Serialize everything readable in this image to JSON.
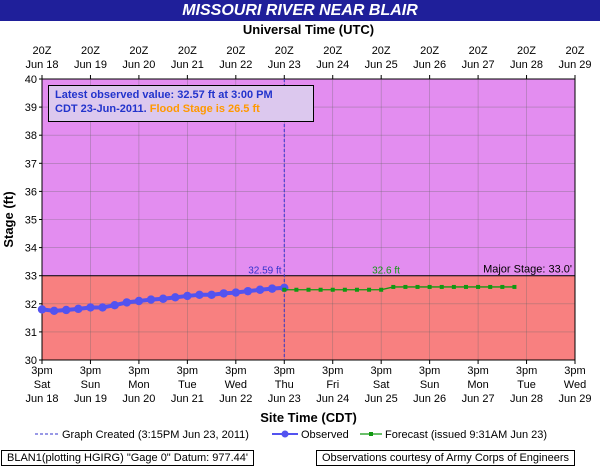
{
  "title": "MISSOURI RIVER NEAR BLAIR",
  "chart_data": {
    "type": "line",
    "top_axis_title": "Universal Time (UTC)",
    "xlabel": "Site Time (CDT)",
    "ylabel": "Stage (ft)",
    "ylim": [
      30,
      40
    ],
    "y_ticks": [
      "30",
      "31",
      "32",
      "33",
      "34",
      "35",
      "36",
      "37",
      "38",
      "39",
      "40"
    ],
    "top_ticks": [
      [
        "20Z",
        "Jun 18"
      ],
      [
        "20Z",
        "Jun 19"
      ],
      [
        "20Z",
        "Jun 20"
      ],
      [
        "20Z",
        "Jun 21"
      ],
      [
        "20Z",
        "Jun 22"
      ],
      [
        "20Z",
        "Jun 23"
      ],
      [
        "20Z",
        "Jun 24"
      ],
      [
        "20Z",
        "Jun 25"
      ],
      [
        "20Z",
        "Jun 26"
      ],
      [
        "20Z",
        "Jun 27"
      ],
      [
        "20Z",
        "Jun 28"
      ],
      [
        "20Z",
        "Jun 29"
      ]
    ],
    "bottom_ticks": [
      [
        "3pm",
        "Sat",
        "Jun 18"
      ],
      [
        "3pm",
        "Sun",
        "Jun 19"
      ],
      [
        "3pm",
        "Mon",
        "Jun 20"
      ],
      [
        "3pm",
        "Tue",
        "Jun 21"
      ],
      [
        "3pm",
        "Wed",
        "Jun 22"
      ],
      [
        "3pm",
        "Thu",
        "Jun 23"
      ],
      [
        "3pm",
        "Fri",
        "Jun 24"
      ],
      [
        "3pm",
        "Sat",
        "Jun 25"
      ],
      [
        "3pm",
        "Sun",
        "Jun 26"
      ],
      [
        "3pm",
        "Mon",
        "Jun 27"
      ],
      [
        "3pm",
        "Tue",
        "Jun 28"
      ],
      [
        "3pm",
        "Wed",
        "Jun 29"
      ]
    ],
    "grid": true,
    "major_stage": 33.0,
    "major_stage_label": "Major Stage: 33.0'",
    "observed_peak_label": "32.59 ft",
    "forecast_peak_label": "32.6 ft",
    "info": {
      "line1": "Latest observed value: 32.57 ft at 3:00 PM",
      "line2a": "CDT 23-Jun-2011.",
      "line2b": "Flood Stage is 26.5 ft"
    },
    "series": [
      {
        "name": "Observed",
        "x": [
          0,
          0.25,
          0.5,
          0.75,
          1.0,
          1.25,
          1.5,
          1.75,
          2.0,
          2.25,
          2.5,
          2.75,
          3.0,
          3.25,
          3.5,
          3.75,
          4.0,
          4.25,
          4.5,
          4.75,
          5.0
        ],
        "values": [
          31.8,
          31.75,
          31.78,
          31.82,
          31.87,
          31.87,
          31.95,
          32.05,
          32.1,
          32.15,
          32.18,
          32.23,
          32.28,
          32.32,
          32.32,
          32.37,
          32.4,
          32.45,
          32.5,
          32.54,
          32.57
        ]
      },
      {
        "name": "Forecast (issued 9:31AM Jun 23)",
        "x": [
          5.0,
          5.25,
          5.5,
          5.75,
          6.0,
          6.25,
          6.5,
          6.75,
          7.0,
          7.25,
          7.5,
          7.75,
          8.0,
          8.25,
          8.5,
          8.75,
          9.0,
          9.25,
          9.5,
          9.75
        ],
        "values": [
          32.5,
          32.5,
          32.5,
          32.5,
          32.5,
          32.5,
          32.5,
          32.5,
          32.5,
          32.6,
          32.6,
          32.6,
          32.6,
          32.6,
          32.6,
          32.6,
          32.6,
          32.6,
          32.6,
          32.6
        ]
      }
    ],
    "colors": {
      "above_major": "#e38df0",
      "below_major": "#f88080",
      "observed": "#5353f0",
      "forecast": "#119911",
      "flood_text": "#ff9900",
      "info_text": "#2233cc"
    }
  },
  "legend": {
    "graph_created": "Graph Created (3:15PM Jun 23, 2011)",
    "observed": "Observed",
    "forecast": "Forecast (issued 9:31AM Jun 23)"
  },
  "footer": {
    "left": "BLAN1(plotting HGIRG) \"Gage 0\" Datum: 977.44'",
    "right": "Observations courtesy of Army Corps of Engineers"
  }
}
